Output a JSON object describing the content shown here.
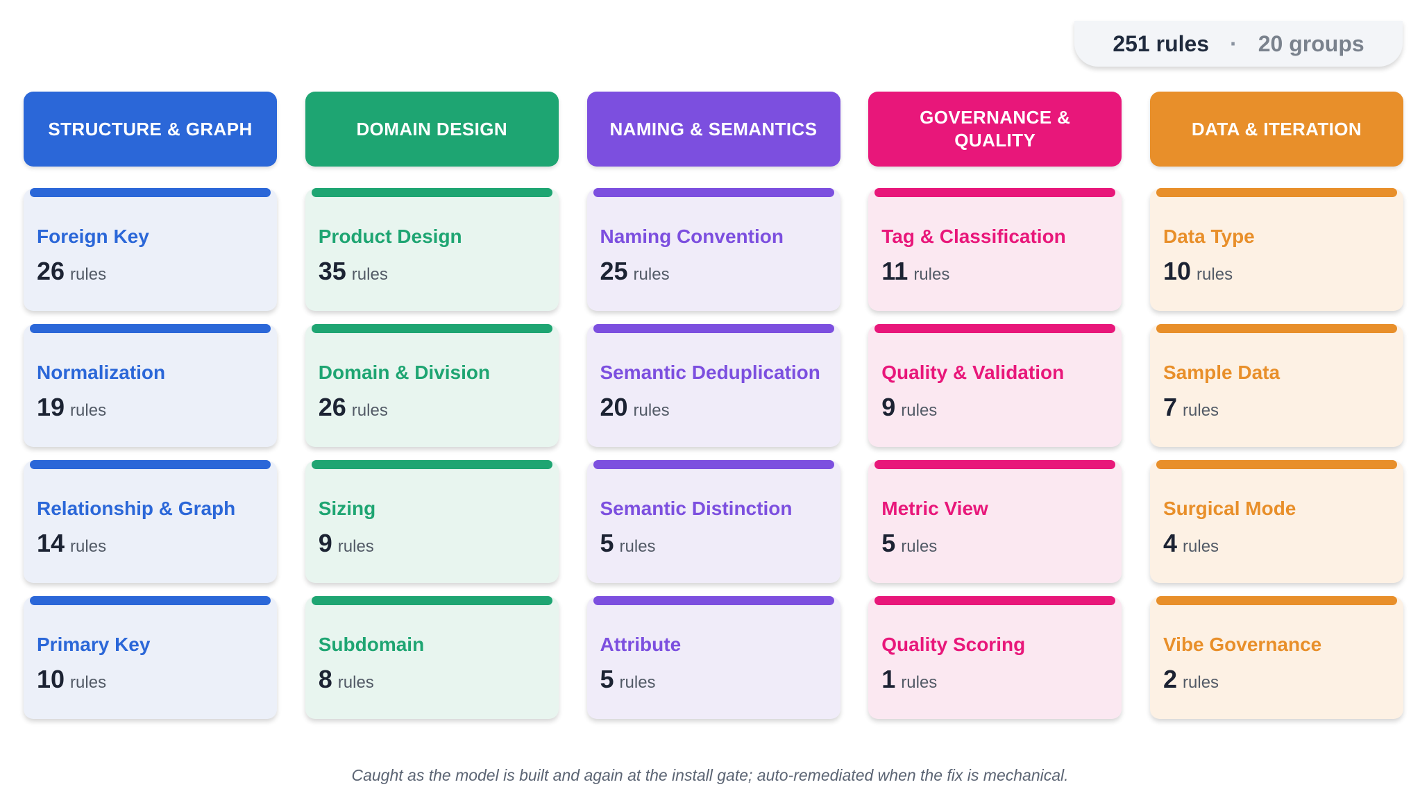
{
  "summary": {
    "total": "251 rules",
    "separator": "·",
    "groups": "20 groups"
  },
  "columns": [
    {
      "title": "STRUCTURE & GRAPH",
      "color": "#2b67d8",
      "tint": "#ecf0f9",
      "cards": [
        {
          "name": "Foreign Key",
          "count": "26",
          "unit": "rules"
        },
        {
          "name": "Normalization",
          "count": "19",
          "unit": "rules"
        },
        {
          "name": "Relationship & Graph",
          "count": "14",
          "unit": "rules"
        },
        {
          "name": "Primary Key",
          "count": "10",
          "unit": "rules"
        }
      ]
    },
    {
      "title": "DOMAIN DESIGN",
      "color": "#1ea572",
      "tint": "#e8f5ef",
      "cards": [
        {
          "name": "Product Design",
          "count": "35",
          "unit": "rules"
        },
        {
          "name": "Domain & Division",
          "count": "26",
          "unit": "rules"
        },
        {
          "name": "Sizing",
          "count": "9",
          "unit": "rules"
        },
        {
          "name": "Subdomain",
          "count": "8",
          "unit": "rules"
        }
      ]
    },
    {
      "title": "NAMING & SEMANTICS",
      "color": "#7c4fdf",
      "tint": "#f0ecf9",
      "cards": [
        {
          "name": "Naming Convention",
          "count": "25",
          "unit": "rules"
        },
        {
          "name": "Semantic Deduplication",
          "count": "20",
          "unit": "rules"
        },
        {
          "name": "Semantic Distinction",
          "count": "5",
          "unit": "rules"
        },
        {
          "name": "Attribute",
          "count": "5",
          "unit": "rules"
        }
      ]
    },
    {
      "title": "GOVERNANCE & QUALITY",
      "color": "#e8177a",
      "tint": "#fbe8f1",
      "cards": [
        {
          "name": "Tag & Classification",
          "count": "11",
          "unit": "rules"
        },
        {
          "name": "Quality & Validation",
          "count": "9",
          "unit": "rules"
        },
        {
          "name": "Metric View",
          "count": "5",
          "unit": "rules"
        },
        {
          "name": "Quality Scoring",
          "count": "1",
          "unit": "rules"
        }
      ]
    },
    {
      "title": "DATA & ITERATION",
      "color": "#e88f2a",
      "tint": "#fdf1e4",
      "cards": [
        {
          "name": "Data Type",
          "count": "10",
          "unit": "rules"
        },
        {
          "name": "Sample Data",
          "count": "7",
          "unit": "rules"
        },
        {
          "name": "Surgical Mode",
          "count": "4",
          "unit": "rules"
        },
        {
          "name": "Vibe Governance",
          "count": "2",
          "unit": "rules"
        }
      ]
    }
  ],
  "footnote": "Caught as the model is built and again at the install gate; auto-remediated when the fix is mechanical."
}
